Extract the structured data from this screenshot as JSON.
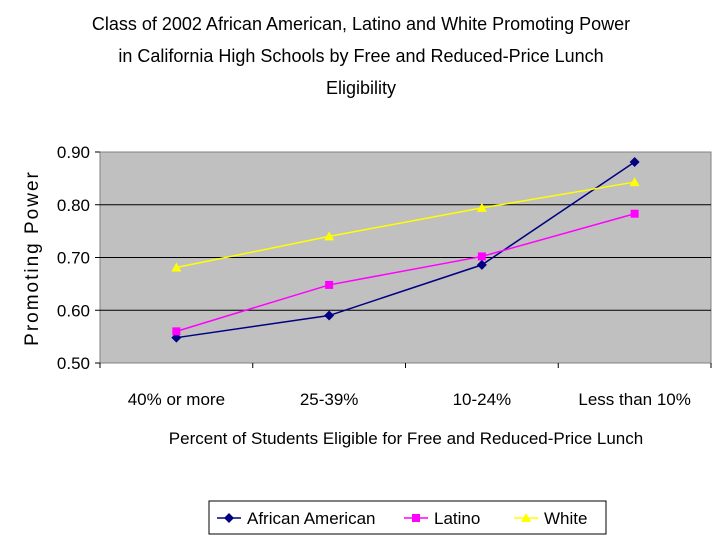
{
  "chart_data": {
    "type": "line",
    "title": [
      "Class of 2002 African American, Latino and White Promoting Power",
      "in California High Schools by Free and Reduced-Price Lunch",
      "Eligibility"
    ],
    "xlabel": "Percent of Students Eligible for Free and Reduced-Price Lunch",
    "ylabel": "Promoting Power",
    "categories": [
      "40% or more",
      "25-39%",
      "10-24%",
      "Less than 10%"
    ],
    "ylim": [
      0.5,
      0.9
    ],
    "yticks": [
      "0.50",
      "0.60",
      "0.70",
      "0.80",
      "0.90"
    ],
    "grid": true,
    "legend_position": "bottom",
    "series": [
      {
        "name": "African American",
        "color": "#000080",
        "marker": "diamond",
        "values": [
          0.548,
          0.59,
          0.686,
          0.881
        ]
      },
      {
        "name": "Latino",
        "color": "#FF00FF",
        "marker": "square",
        "values": [
          0.56,
          0.648,
          0.702,
          0.783
        ]
      },
      {
        "name": "White",
        "color": "#FFFF00",
        "marker": "triangle",
        "values": [
          0.681,
          0.74,
          0.794,
          0.843
        ]
      }
    ]
  }
}
